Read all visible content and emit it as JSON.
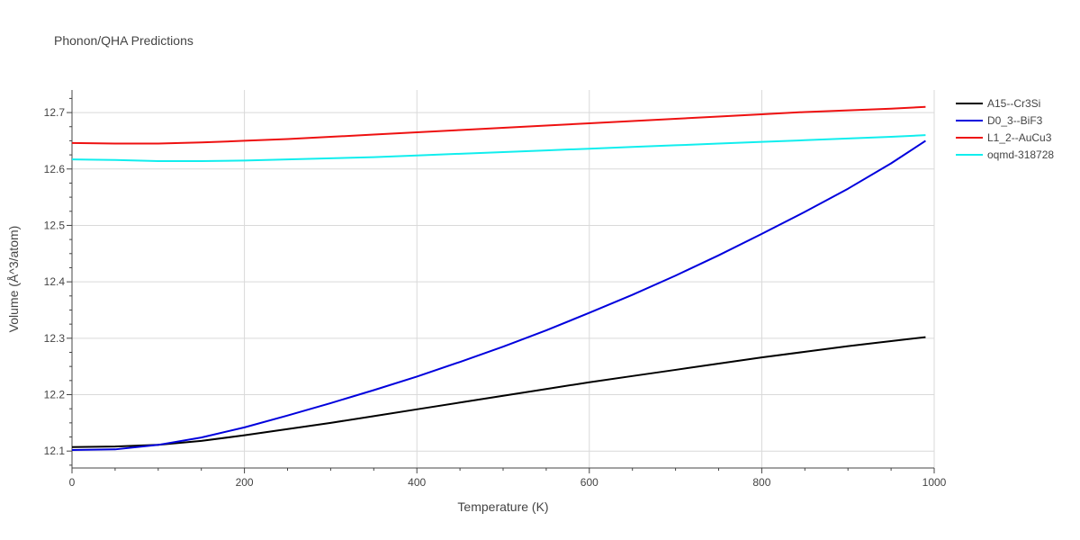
{
  "chart_data": {
    "type": "line",
    "title": "Phonon/QHA Predictions",
    "xlabel": "Temperature (K)",
    "ylabel": "Volume (Å^3/atom)",
    "xlim": [
      0,
      1000
    ],
    "ylim": [
      12.07,
      12.74
    ],
    "x_ticks": [
      0,
      200,
      400,
      600,
      800,
      1000
    ],
    "y_ticks": [
      12.1,
      12.2,
      12.3,
      12.4,
      12.5,
      12.6,
      12.7
    ],
    "grid": true,
    "legend_position": "right",
    "series": [
      {
        "name": "A15--Cr3Si",
        "color": "#000000",
        "x": [
          0,
          50,
          100,
          150,
          200,
          250,
          300,
          350,
          400,
          450,
          500,
          550,
          600,
          650,
          700,
          750,
          800,
          850,
          900,
          950,
          990
        ],
        "y": [
          12.107,
          12.108,
          12.111,
          12.118,
          12.128,
          12.139,
          12.15,
          12.162,
          12.174,
          12.186,
          12.198,
          12.21,
          12.222,
          12.233,
          12.244,
          12.255,
          12.266,
          12.276,
          12.286,
          12.295,
          12.302
        ]
      },
      {
        "name": "D0_3--BiF3",
        "color": "#0000dd",
        "x": [
          0,
          50,
          100,
          150,
          200,
          250,
          300,
          350,
          400,
          450,
          500,
          550,
          600,
          650,
          700,
          750,
          800,
          850,
          900,
          950,
          990
        ],
        "y": [
          12.102,
          12.103,
          12.111,
          12.124,
          12.142,
          12.163,
          12.185,
          12.208,
          12.232,
          12.258,
          12.285,
          12.314,
          12.345,
          12.377,
          12.411,
          12.447,
          12.485,
          12.524,
          12.565,
          12.61,
          12.65
        ]
      },
      {
        "name": "L1_2--AuCu3",
        "color": "#ee1111",
        "x": [
          0,
          50,
          100,
          150,
          200,
          250,
          300,
          350,
          400,
          450,
          500,
          550,
          600,
          650,
          700,
          750,
          800,
          850,
          900,
          950,
          990
        ],
        "y": [
          12.646,
          12.645,
          12.645,
          12.647,
          12.65,
          12.653,
          12.657,
          12.661,
          12.665,
          12.669,
          12.673,
          12.677,
          12.681,
          12.685,
          12.689,
          12.693,
          12.697,
          12.701,
          12.704,
          12.707,
          12.71
        ]
      },
      {
        "name": "oqmd-318728",
        "color": "#11eeee",
        "x": [
          0,
          50,
          100,
          150,
          200,
          250,
          300,
          350,
          400,
          450,
          500,
          550,
          600,
          650,
          700,
          750,
          800,
          850,
          900,
          950,
          990
        ],
        "y": [
          12.617,
          12.616,
          12.614,
          12.614,
          12.615,
          12.617,
          12.619,
          12.621,
          12.624,
          12.627,
          12.63,
          12.633,
          12.636,
          12.639,
          12.642,
          12.645,
          12.648,
          12.651,
          12.654,
          12.657,
          12.66
        ]
      }
    ]
  }
}
